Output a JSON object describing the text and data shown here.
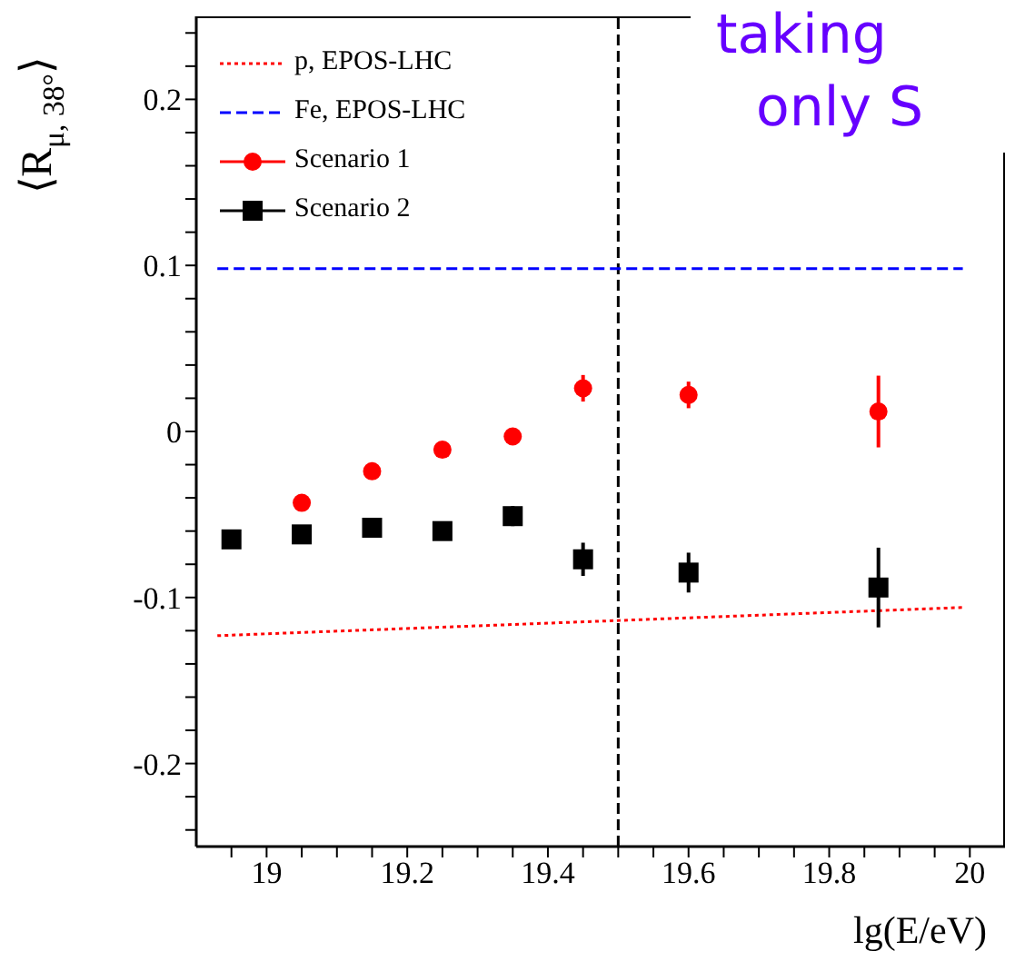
{
  "chart_data": {
    "type": "scatter",
    "xlabel": "lg(E/eV)",
    "ylabel": "⟨R$_{μ, 38°}$⟩",
    "annotations": [
      "taking",
      "only S"
    ],
    "xlim": [
      18.9,
      20.05
    ],
    "ylim": [
      -0.25,
      0.25
    ],
    "xticks": [
      {
        "value": 18.95,
        "label": null
      },
      19,
      {
        "value": 19.05,
        "label": null
      },
      {
        "value": 19.1,
        "label": null
      },
      {
        "value": 19.15,
        "label": null
      },
      19.2,
      {
        "value": 19.25,
        "label": null
      },
      {
        "value": 19.3,
        "label": null
      },
      {
        "value": 19.35,
        "label": null
      },
      19.4,
      {
        "value": 19.45,
        "label": null
      },
      {
        "value": 19.5,
        "label": null
      },
      {
        "value": 19.55,
        "label": null
      },
      19.6,
      {
        "value": 19.65,
        "label": null
      },
      {
        "value": 19.7,
        "label": null
      },
      {
        "value": 19.75,
        "label": null
      },
      19.8,
      {
        "value": 19.85,
        "label": null
      },
      {
        "value": 19.9,
        "label": null
      },
      {
        "value": 19.95,
        "label": null
      },
      20
    ],
    "yticks": [
      {
        "value": -0.24,
        "label": null
      },
      {
        "value": -0.22,
        "label": null
      },
      -0.2,
      {
        "value": -0.18,
        "label": null
      },
      {
        "value": -0.16,
        "label": null
      },
      {
        "value": -0.14,
        "label": null
      },
      {
        "value": -0.12,
        "label": null
      },
      -0.1,
      {
        "value": -0.08,
        "label": null
      },
      {
        "value": -0.06,
        "label": null
      },
      {
        "value": -0.04,
        "label": null
      },
      {
        "value": -0.02,
        "label": null
      },
      0,
      {
        "value": 0.02,
        "label": null
      },
      {
        "value": 0.04,
        "label": null
      },
      {
        "value": 0.06,
        "label": null
      },
      {
        "value": 0.08,
        "label": null
      },
      0.1,
      {
        "value": 0.12,
        "label": null
      },
      {
        "value": 0.14,
        "label": null
      },
      {
        "value": 0.16,
        "label": null
      },
      {
        "value": 0.18,
        "label": null
      },
      0.2,
      {
        "value": 0.22,
        "label": null
      },
      {
        "value": 0.24,
        "label": null
      }
    ],
    "ref_lines": [
      {
        "axis": "x",
        "value": 19.5,
        "color": "#000000",
        "line_style": "dashed"
      }
    ],
    "legend": "top left",
    "grid": false,
    "series": [
      {
        "name": "p, EPOS-LHC",
        "type": "line",
        "color": "#ff0000",
        "line_style": "dotted",
        "marker": "none",
        "x": [
          18.93,
          19.99
        ],
        "values": [
          -0.123,
          -0.106
        ]
      },
      {
        "name": "Fe, EPOS-LHC",
        "type": "line",
        "color": "#0000ff",
        "line_style": "dashed",
        "marker": "none",
        "x": [
          18.93,
          19.99
        ],
        "values": [
          0.098,
          0.098
        ]
      },
      {
        "name": "Scenario 1",
        "color": "#ff0000",
        "marker": "circle",
        "x": [
          19.05,
          19.15,
          19.25,
          19.35,
          19.45,
          19.6,
          19.87
        ],
        "values": [
          -0.043,
          -0.024,
          -0.011,
          -0.003,
          0.026,
          0.022,
          0.012
        ],
        "errors": [
          null,
          null,
          null,
          0.005,
          0.008,
          0.008,
          0.0216
        ]
      },
      {
        "name": "Scenario 2",
        "color": "#000000",
        "marker": "square",
        "x": [
          18.95,
          19.05,
          19.15,
          19.25,
          19.35,
          19.45,
          19.6,
          19.87
        ],
        "values": [
          -0.065,
          -0.062,
          -0.058,
          -0.06,
          -0.051,
          -0.077,
          -0.085,
          -0.094
        ],
        "errors": [
          null,
          null,
          null,
          0.004,
          0.006,
          0.01,
          0.012,
          0.024
        ]
      }
    ]
  }
}
